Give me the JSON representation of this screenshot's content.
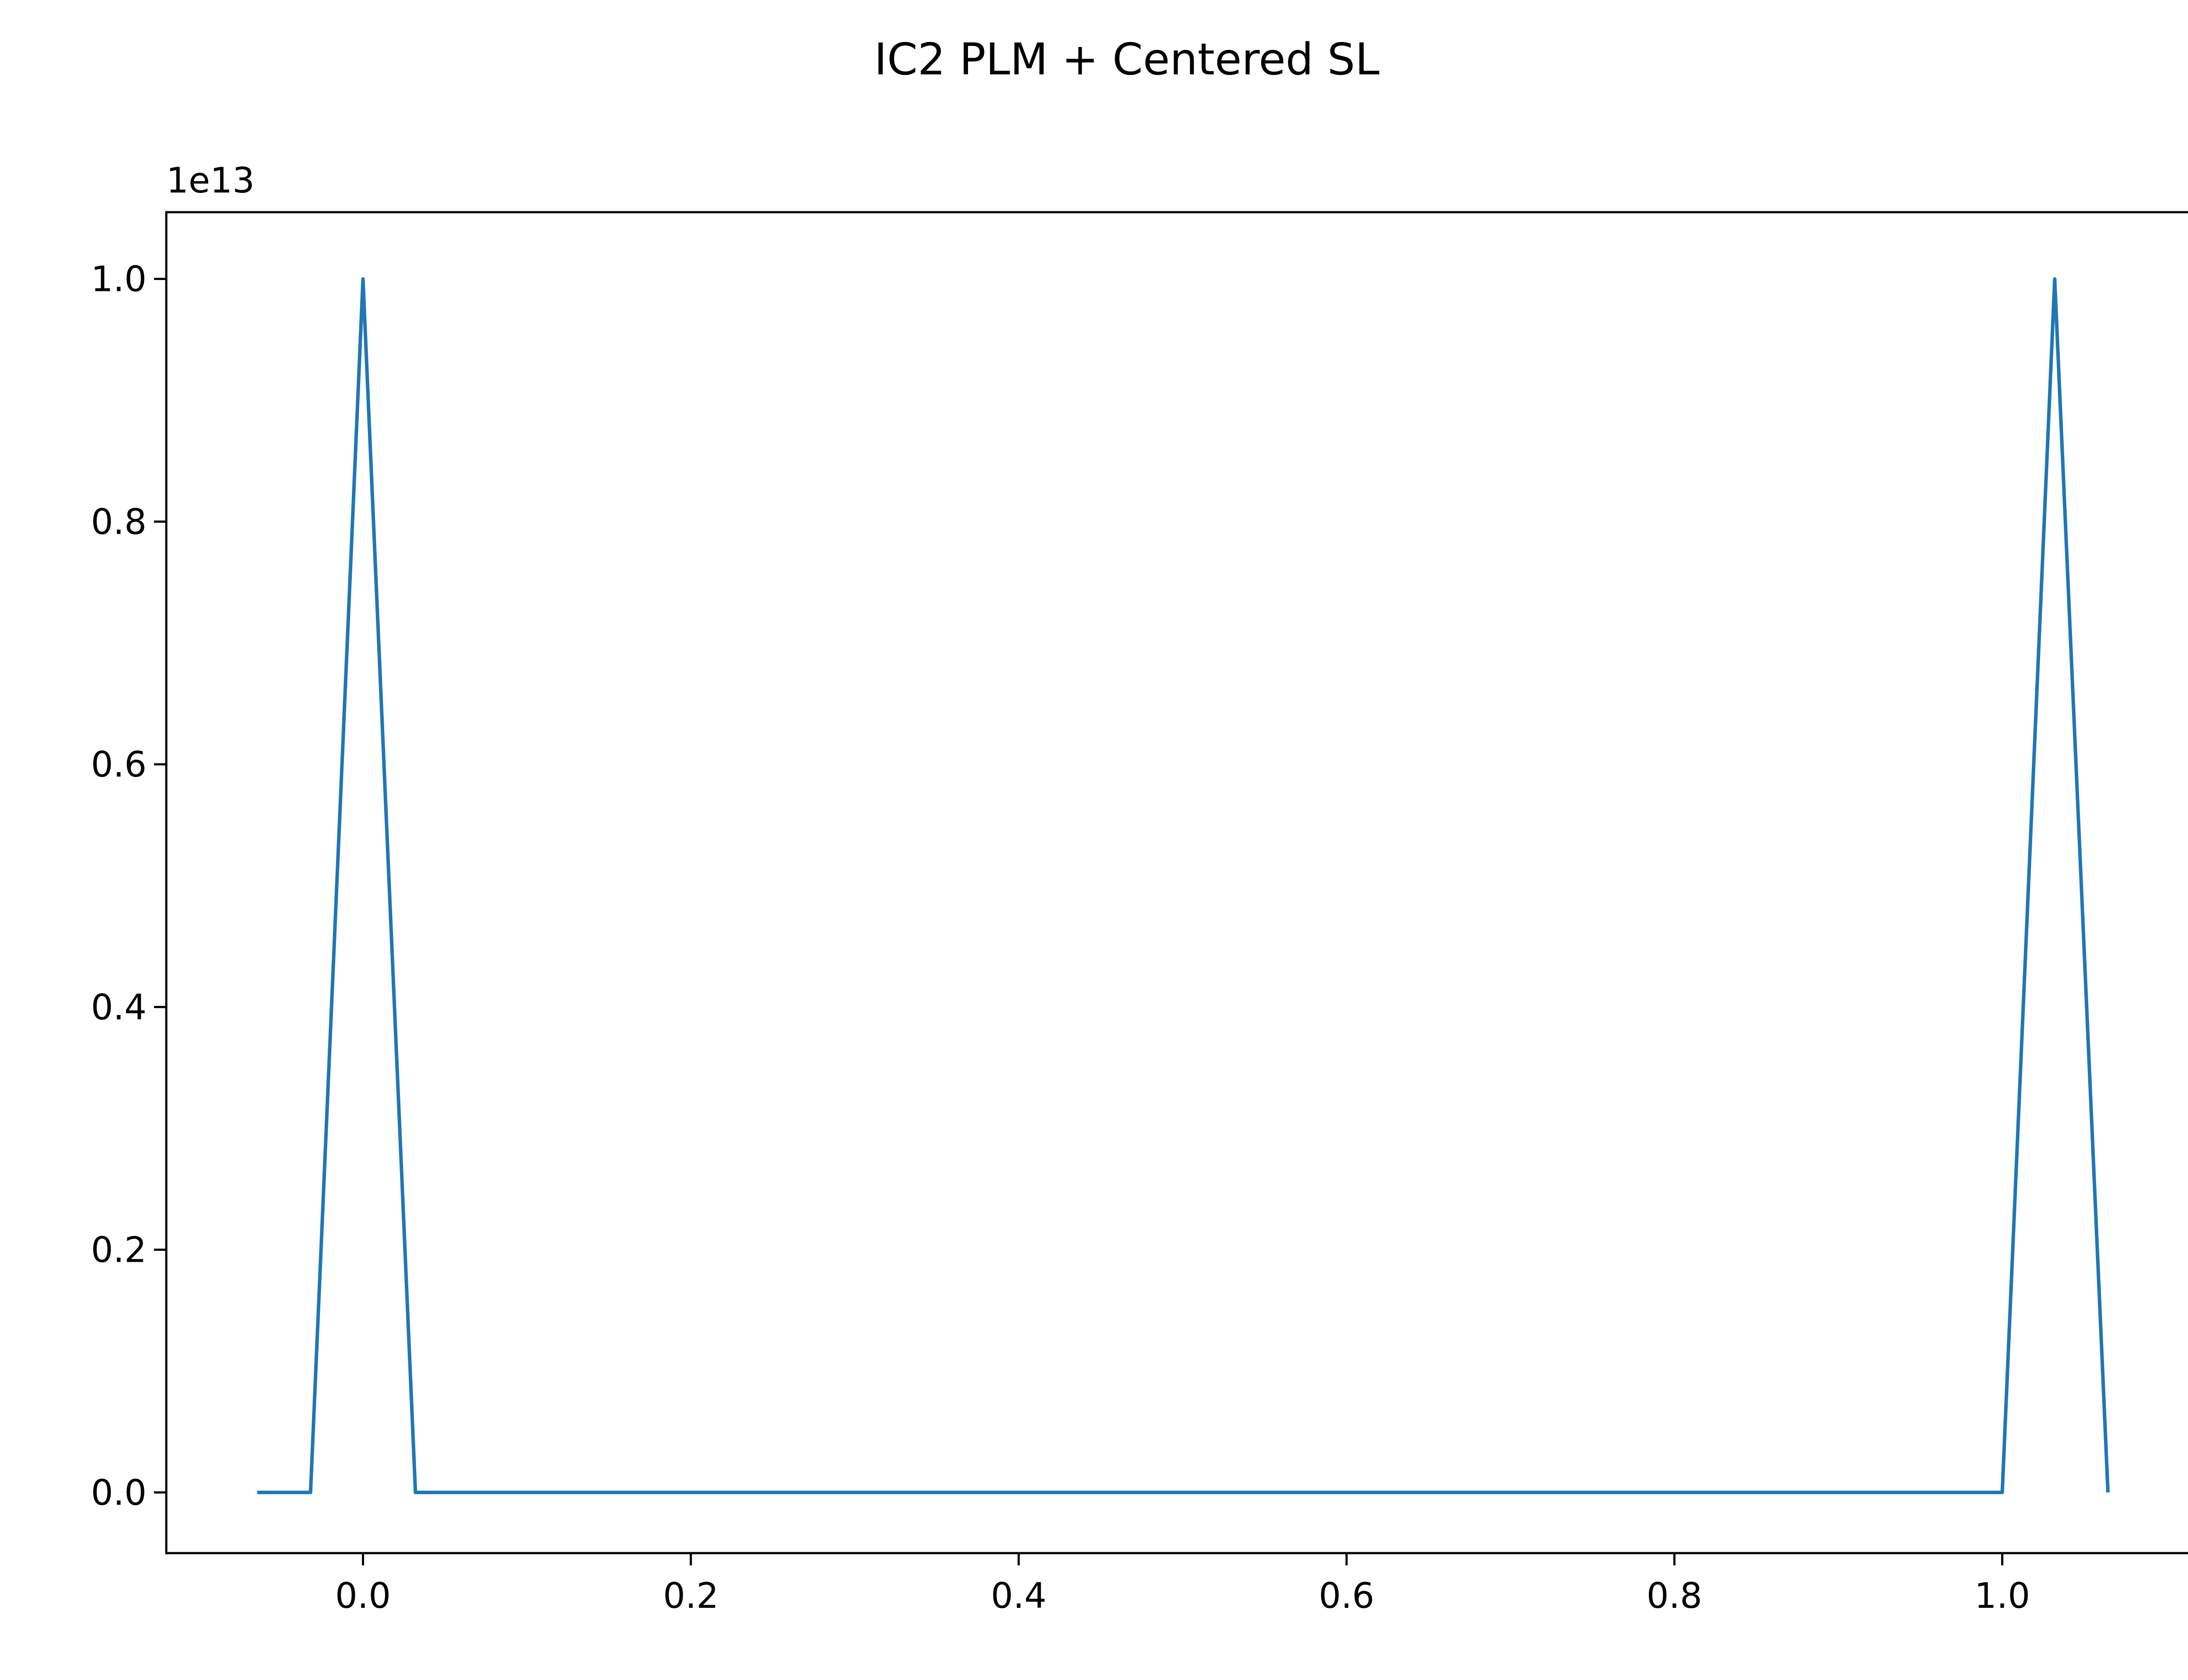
{
  "title": "IC2 PLM + Centered SL",
  "chart_data": {
    "type": "line",
    "title": "IC2 PLM + Centered SL",
    "xlabel": "",
    "ylabel": "",
    "y_offset_label": "1e13",
    "xlim": [
      -0.12,
      1.12
    ],
    "ylim": [
      -0.05,
      1.055
    ],
    "y_scale_multiplier": 10000000000000.0,
    "x_ticks": [
      0.0,
      0.2,
      0.4,
      0.6,
      0.8,
      1.0
    ],
    "x_tick_labels": [
      "0.0",
      "0.2",
      "0.4",
      "0.6",
      "0.8",
      "1.0"
    ],
    "y_ticks": [
      0.0,
      0.2,
      0.4,
      0.6,
      0.8,
      1.0
    ],
    "y_tick_labels": [
      "0.0",
      "0.2",
      "0.4",
      "0.6",
      "0.8",
      "1.0"
    ],
    "grid": false,
    "series": [
      {
        "color": "#1f77b4",
        "x": [
          -0.0645,
          -0.032,
          0.0,
          0.032,
          1.0,
          1.032,
          1.0645
        ],
        "y": [
          0.0,
          0.0,
          1.0,
          0.0,
          0.0,
          1.0,
          0.0
        ]
      }
    ]
  }
}
